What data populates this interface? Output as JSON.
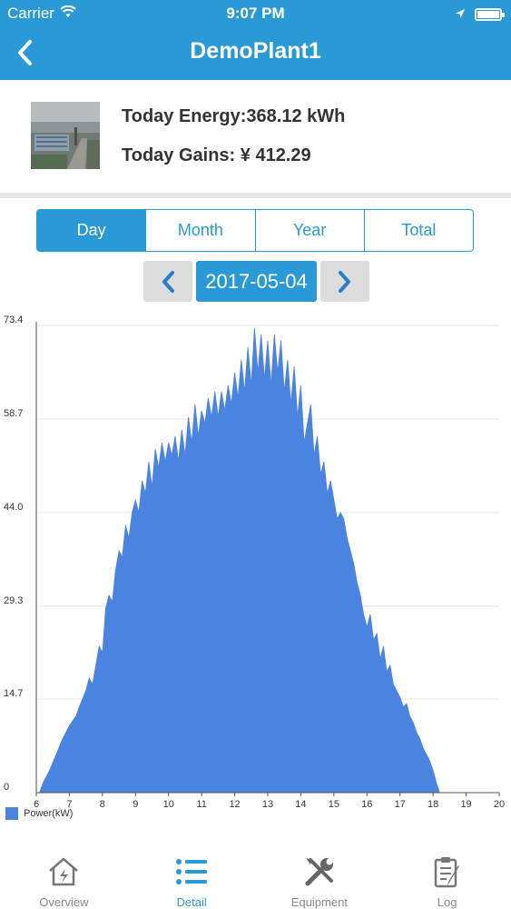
{
  "status_bar": {
    "carrier": "Carrier",
    "time": "9:07 PM"
  },
  "nav": {
    "title": "DemoPlant1",
    "back_icon": "chevron-left-icon"
  },
  "summary": {
    "today_energy": "Today Energy:368.12 kWh",
    "today_gains": "Today Gains: ¥ 412.29"
  },
  "period_tabs": [
    {
      "label": "Day",
      "active": true
    },
    {
      "label": "Month",
      "active": false
    },
    {
      "label": "Year",
      "active": false
    },
    {
      "label": "Total",
      "active": false
    }
  ],
  "date_picker": {
    "date": "2017-05-04"
  },
  "colors": {
    "primary": "#2a9ad6",
    "series": "#4a84e0"
  },
  "chart_data": {
    "type": "area",
    "legend": [
      "Power(kW)"
    ],
    "legend_placement": "bottom-left",
    "grid": true,
    "xlim": [
      6,
      20
    ],
    "ylim": [
      0,
      73.4
    ],
    "x_ticks": [
      "6",
      "7",
      "8",
      "9",
      "10",
      "11",
      "12",
      "13",
      "14",
      "15",
      "16",
      "17",
      "18",
      "19",
      "20"
    ],
    "y_ticks": [
      "0",
      "14.7",
      "29.3",
      "44.0",
      "58.7",
      "73.4"
    ],
    "series": [
      {
        "name": "Power(kW)",
        "points": [
          [
            6.0,
            0
          ],
          [
            6.1,
            0
          ],
          [
            6.2,
            1.5
          ],
          [
            6.4,
            3.5
          ],
          [
            6.6,
            6
          ],
          [
            6.8,
            8.5
          ],
          [
            7.0,
            10.5
          ],
          [
            7.2,
            12
          ],
          [
            7.3,
            13.5
          ],
          [
            7.5,
            16
          ],
          [
            7.6,
            18
          ],
          [
            7.7,
            17
          ],
          [
            7.8,
            20
          ],
          [
            7.9,
            23
          ],
          [
            8.0,
            22
          ],
          [
            8.1,
            29
          ],
          [
            8.2,
            31
          ],
          [
            8.3,
            30
          ],
          [
            8.4,
            35
          ],
          [
            8.5,
            38
          ],
          [
            8.6,
            37
          ],
          [
            8.7,
            42
          ],
          [
            8.8,
            40
          ],
          [
            8.9,
            44
          ],
          [
            9.0,
            46
          ],
          [
            9.1,
            44
          ],
          [
            9.2,
            49
          ],
          [
            9.3,
            47
          ],
          [
            9.4,
            52
          ],
          [
            9.5,
            48
          ],
          [
            9.6,
            54
          ],
          [
            9.7,
            51
          ],
          [
            9.8,
            55
          ],
          [
            9.9,
            52
          ],
          [
            10.0,
            55
          ],
          [
            10.1,
            53
          ],
          [
            10.2,
            56
          ],
          [
            10.3,
            52
          ],
          [
            10.4,
            57
          ],
          [
            10.5,
            53
          ],
          [
            10.6,
            59
          ],
          [
            10.7,
            55
          ],
          [
            10.8,
            61
          ],
          [
            10.9,
            56
          ],
          [
            11.0,
            60
          ],
          [
            11.1,
            58
          ],
          [
            11.2,
            62
          ],
          [
            11.3,
            59
          ],
          [
            11.4,
            63
          ],
          [
            11.5,
            59
          ],
          [
            11.6,
            63
          ],
          [
            11.7,
            60
          ],
          [
            11.8,
            64
          ],
          [
            11.9,
            61
          ],
          [
            12.0,
            66
          ],
          [
            12.1,
            62
          ],
          [
            12.2,
            68
          ],
          [
            12.3,
            63
          ],
          [
            12.4,
            70
          ],
          [
            12.5,
            64
          ],
          [
            12.6,
            73
          ],
          [
            12.7,
            66
          ],
          [
            12.8,
            72
          ],
          [
            12.9,
            65
          ],
          [
            13.0,
            71
          ],
          [
            13.1,
            64
          ],
          [
            13.2,
            72
          ],
          [
            13.3,
            66
          ],
          [
            13.4,
            71
          ],
          [
            13.5,
            63
          ],
          [
            13.6,
            68
          ],
          [
            13.7,
            61
          ],
          [
            13.8,
            67
          ],
          [
            13.9,
            59
          ],
          [
            14.0,
            64
          ],
          [
            14.1,
            55
          ],
          [
            14.2,
            58
          ],
          [
            14.3,
            61
          ],
          [
            14.4,
            53
          ],
          [
            14.5,
            56
          ],
          [
            14.6,
            50
          ],
          [
            14.7,
            52
          ],
          [
            14.8,
            47
          ],
          [
            14.9,
            49
          ],
          [
            15.0,
            46
          ],
          [
            15.1,
            43
          ],
          [
            15.2,
            44
          ],
          [
            15.3,
            43
          ],
          [
            15.4,
            40
          ],
          [
            15.5,
            38
          ],
          [
            15.6,
            36
          ],
          [
            15.7,
            33
          ],
          [
            15.8,
            31
          ],
          [
            15.9,
            28
          ],
          [
            16.0,
            26
          ],
          [
            16.1,
            28
          ],
          [
            16.2,
            24
          ],
          [
            16.3,
            25
          ],
          [
            16.4,
            21
          ],
          [
            16.5,
            23
          ],
          [
            16.6,
            19
          ],
          [
            16.7,
            20
          ],
          [
            16.8,
            17
          ],
          [
            16.9,
            16
          ],
          [
            17.0,
            15
          ],
          [
            17.1,
            13.5
          ],
          [
            17.2,
            14
          ],
          [
            17.3,
            12
          ],
          [
            17.4,
            11
          ],
          [
            17.5,
            9.5
          ],
          [
            17.6,
            8.5
          ],
          [
            17.7,
            7
          ],
          [
            17.8,
            6
          ],
          [
            17.9,
            5
          ],
          [
            18.0,
            3.5
          ],
          [
            18.1,
            1.5
          ],
          [
            18.2,
            0
          ],
          [
            20.0,
            0
          ]
        ]
      }
    ]
  },
  "tab_bar": [
    {
      "label": "Overview",
      "icon": "house-icon",
      "active": false
    },
    {
      "label": "Detail",
      "icon": "list-icon",
      "active": true
    },
    {
      "label": "Equipment",
      "icon": "tools-icon",
      "active": false
    },
    {
      "label": "Log",
      "icon": "clipboard-icon",
      "active": false
    }
  ]
}
